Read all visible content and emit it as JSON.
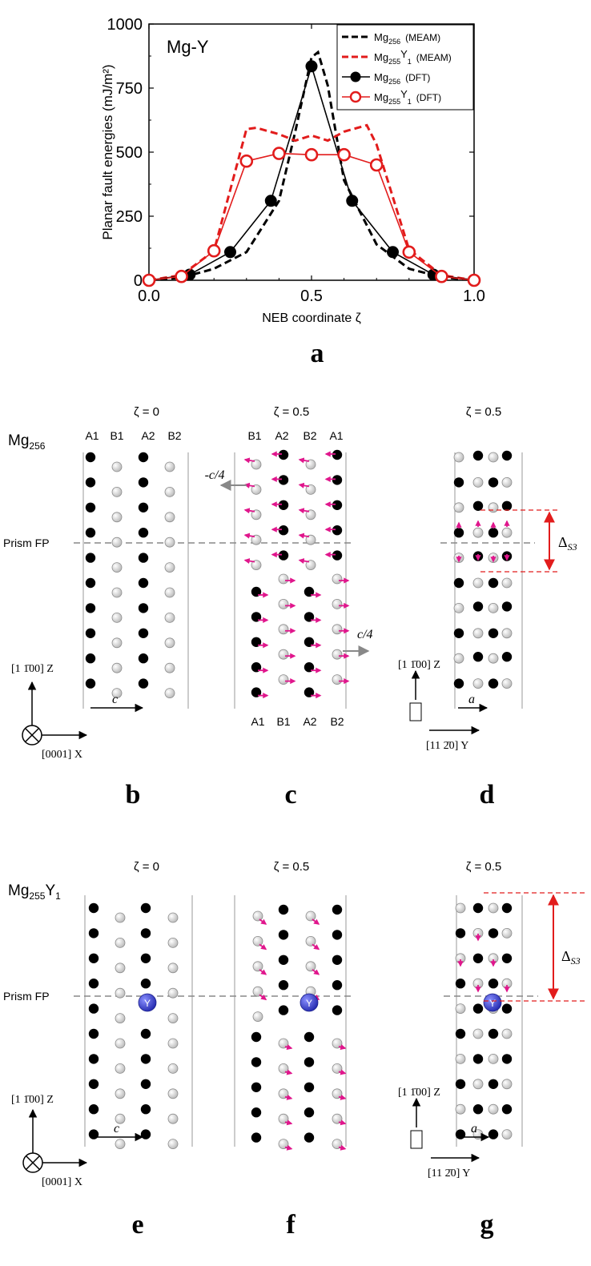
{
  "chart_data": {
    "type": "line",
    "title": "Mg-Y",
    "xlabel": "NEB coordinate ζ",
    "ylabel": "Planar fault energies (mJ/m²)",
    "xlim": [
      0.0,
      1.0
    ],
    "ylim": [
      0,
      1000
    ],
    "xticks": [
      "0.0",
      "0.5",
      "1.0"
    ],
    "yticks": [
      "0",
      "250",
      "500",
      "750",
      "1000"
    ],
    "legend_position": "top-right",
    "series": [
      {
        "name": "Mg256 (MEAM)",
        "legend_main": "Mg",
        "legend_sub": "256",
        "legend_note": "(MEAM)",
        "style": "dashed",
        "color": "#000000",
        "x": [
          0.0,
          0.1,
          0.2,
          0.3,
          0.4,
          0.45,
          0.5,
          0.52,
          0.55,
          0.6,
          0.7,
          0.8,
          0.9,
          1.0
        ],
        "y": [
          0,
          10,
          45,
          110,
          310,
          580,
          870,
          890,
          760,
          390,
          140,
          45,
          12,
          0
        ]
      },
      {
        "name": "Mg255Y1 (MEAM)",
        "legend_main": "Mg",
        "legend_sub": "255",
        "legend_main2": "Y",
        "legend_sub2": "1",
        "legend_note": "(MEAM)",
        "style": "dashed",
        "color": "#e21c1c",
        "x": [
          0.0,
          0.1,
          0.2,
          0.3,
          0.33,
          0.4,
          0.45,
          0.5,
          0.55,
          0.6,
          0.67,
          0.7,
          0.8,
          0.9,
          1.0
        ],
        "y": [
          0,
          20,
          115,
          590,
          595,
          570,
          545,
          565,
          545,
          580,
          605,
          530,
          120,
          20,
          0
        ]
      },
      {
        "name": "Mg256 (DFT)",
        "legend_main": "Mg",
        "legend_sub": "256",
        "legend_note": "(DFT)",
        "style": "solid-filled",
        "color": "#000000",
        "x": [
          0.0,
          0.125,
          0.25,
          0.375,
          0.5,
          0.625,
          0.75,
          0.875,
          1.0
        ],
        "y": [
          0,
          22,
          110,
          310,
          835,
          310,
          110,
          22,
          0
        ]
      },
      {
        "name": "Mg255Y1 (DFT)",
        "legend_main": "Mg",
        "legend_sub": "255",
        "legend_main2": "Y",
        "legend_sub2": "1",
        "legend_note": "(DFT)",
        "style": "solid-open",
        "color": "#e21c1c",
        "x": [
          0.0,
          0.1,
          0.2,
          0.3,
          0.4,
          0.5,
          0.6,
          0.7,
          0.8,
          0.9,
          1.0
        ],
        "y": [
          0,
          15,
          115,
          465,
          495,
          490,
          490,
          450,
          110,
          15,
          0
        ]
      }
    ]
  },
  "labels": {
    "panel_a": "a",
    "panel_b": "b",
    "panel_c": "c",
    "panel_d": "d",
    "panel_e": "e",
    "panel_f": "f",
    "panel_g": "g",
    "zeta0": "ζ = 0",
    "zeta05": "ζ = 0.5",
    "mg256_main": "Mg",
    "mg256_sub": "256",
    "mg255_main": "Mg",
    "mg255_sub": "255",
    "mg255_y": "Y",
    "mg255_ysub": "1",
    "prism_fp": "Prism FP",
    "col_top_b": [
      "A1",
      "B1",
      "A2",
      "B2"
    ],
    "col_top_c": [
      "B1",
      "A2",
      "B2",
      "A1"
    ],
    "col_bot_c": [
      "A1",
      "B1",
      "A2",
      "B2"
    ],
    "minus_c4": "-c/4",
    "c4": "c/4",
    "c": "c",
    "a": "a",
    "delta": "Δ",
    "delta_sub": "S3",
    "axis_z": "[1 1̄00] Z",
    "axis_x": "[0001] X",
    "axis_y": "[11 2̄0] Y",
    "y_atom": "Y"
  },
  "colors": {
    "red": "#e21c1c",
    "magenta": "#e0168c",
    "blue": "#2f35c8",
    "grey": "#bdbdbd"
  }
}
